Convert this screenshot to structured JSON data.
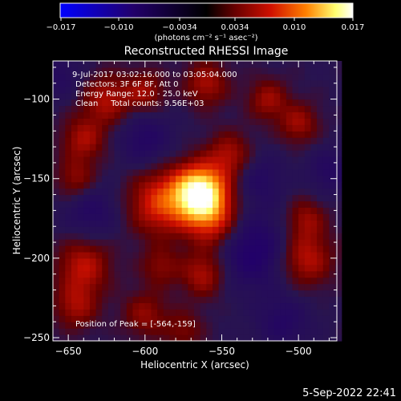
{
  "colorbar": {
    "ticks": [
      "−0.017",
      "−0.010",
      "−0.0034",
      "0.0034",
      "0.010",
      "0.017"
    ],
    "units_label": "(photons cm⁻² s⁻¹ asec⁻²)",
    "colors": [
      "#0000ff",
      "#1a0060",
      "#000000",
      "#5a0000",
      "#d01000",
      "#ff8000",
      "#ffff80",
      "#ffffff"
    ]
  },
  "title": "Reconstructed RHESSI Image",
  "annotations": {
    "line1": "9-Jul-2017 03:02:16.000 to 03:05:04.000",
    "line2": "Detectors: 3F 6F 8F, Att 0",
    "line3": "Energy Range: 12.0 - 25.0 keV",
    "line4": "Clean     Total counts: 9.56E+03",
    "peak": "Position of Peak = [-564,-159]"
  },
  "footer": {
    "date": "5-Sep-2022 22:41"
  },
  "chart_data": {
    "type": "heatmap",
    "title": "Reconstructed RHESSI Image",
    "xlabel": "Heliocentric X (arcsec)",
    "ylabel": "Heliocentric Y (arcsec)",
    "xlim": [
      -660,
      -475
    ],
    "ylim": [
      -252,
      -76
    ],
    "xticks": [
      -650,
      -600,
      -550,
      -500
    ],
    "yticks": [
      -100,
      -150,
      -200,
      -250
    ],
    "peak_position": [
      -564,
      -159
    ],
    "colorbar_range": [
      -0.017,
      0.017
    ],
    "sources": [
      {
        "label": "peak",
        "x": -564,
        "y": -159,
        "amplitude": 1.0,
        "sigma": 12
      },
      {
        "x": -590,
        "y": -165,
        "amplitude": 0.45,
        "sigma": 14
      },
      {
        "x": -555,
        "y": -178,
        "amplitude": 0.35,
        "sigma": 12
      },
      {
        "x": -562,
        "y": -210,
        "amplitude": 0.32,
        "sigma": 10
      },
      {
        "x": -545,
        "y": -135,
        "amplitude": 0.3,
        "sigma": 10
      },
      {
        "x": -640,
        "y": -125,
        "amplitude": 0.3,
        "sigma": 10
      },
      {
        "x": -625,
        "y": -100,
        "amplitude": 0.32,
        "sigma": 11
      },
      {
        "x": -600,
        "y": -95,
        "amplitude": 0.28,
        "sigma": 9
      },
      {
        "x": -560,
        "y": -90,
        "amplitude": 0.3,
        "sigma": 10
      },
      {
        "x": -520,
        "y": -100,
        "amplitude": 0.28,
        "sigma": 9
      },
      {
        "x": -500,
        "y": -115,
        "amplitude": 0.28,
        "sigma": 9
      },
      {
        "x": -645,
        "y": -150,
        "amplitude": 0.25,
        "sigma": 9
      },
      {
        "x": -640,
        "y": -205,
        "amplitude": 0.35,
        "sigma": 12
      },
      {
        "x": -645,
        "y": -230,
        "amplitude": 0.28,
        "sigma": 10
      },
      {
        "x": -495,
        "y": -200,
        "amplitude": 0.35,
        "sigma": 12
      },
      {
        "x": -495,
        "y": -175,
        "amplitude": 0.25,
        "sigma": 9
      },
      {
        "x": -600,
        "y": -235,
        "amplitude": 0.25,
        "sigma": 10
      },
      {
        "x": -590,
        "y": -205,
        "amplitude": 0.22,
        "sigma": 9
      },
      {
        "x": -575,
        "y": -245,
        "amplitude": 0.2,
        "sigma": 9
      }
    ],
    "negative_regions": [
      {
        "x": -530,
        "y": -195,
        "amplitude": -0.32,
        "sigma": 16
      },
      {
        "x": -635,
        "y": -170,
        "amplitude": -0.2,
        "sigma": 12
      },
      {
        "x": -600,
        "y": -125,
        "amplitude": -0.22,
        "sigma": 12
      },
      {
        "x": -525,
        "y": -150,
        "amplitude": -0.18,
        "sigma": 11
      },
      {
        "x": -510,
        "y": -240,
        "amplitude": -0.2,
        "sigma": 12
      },
      {
        "x": -480,
        "y": -145,
        "amplitude": -0.18,
        "sigma": 10
      },
      {
        "x": -655,
        "y": -85,
        "amplitude": -0.15,
        "sigma": 10
      }
    ]
  }
}
